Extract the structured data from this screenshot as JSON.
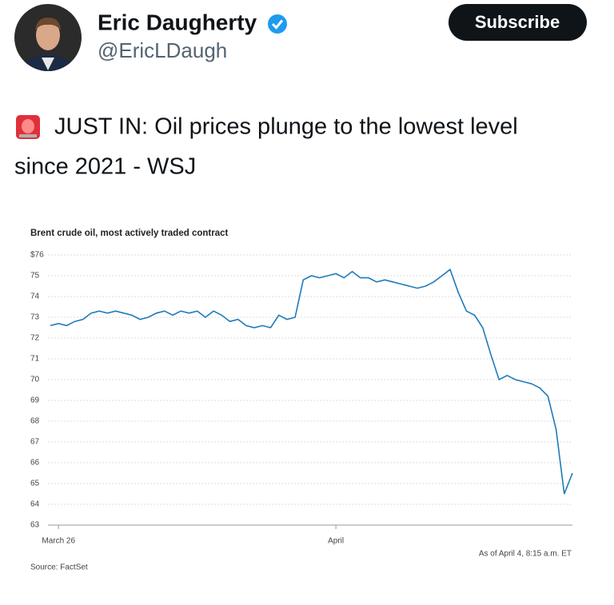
{
  "header": {
    "name": "Eric Daugherty",
    "handle": "@EricLDaugh",
    "button": "Subscribe"
  },
  "tweet": {
    "text_line1": "JUST IN: Oil prices plunge to the lowest level",
    "text_line2": "since 2021 - WSJ"
  },
  "chart_data": {
    "type": "line",
    "title": "Brent crude oil, most actively traded contract",
    "note": "As of April 4, 8:15 a.m. ET",
    "source": "Source: FactSet",
    "color": "#1f7bb8",
    "grid": true,
    "categories": [
      null,
      "March 26",
      null,
      null,
      null,
      null,
      null,
      null,
      null,
      null,
      null,
      null,
      null,
      null,
      null,
      null,
      null,
      null,
      null,
      null,
      null,
      null,
      null,
      null,
      null,
      null,
      null,
      null,
      null,
      null,
      null,
      null,
      null,
      null,
      null,
      "April",
      null,
      null,
      null,
      null,
      null,
      null,
      null,
      null,
      null,
      null,
      null,
      null,
      null,
      null,
      null,
      null,
      null,
      null,
      null,
      null,
      null,
      null,
      null,
      null,
      null,
      null,
      null,
      null,
      null
    ],
    "values": [
      72.6,
      72.7,
      72.6,
      72.8,
      72.9,
      73.2,
      73.3,
      73.2,
      73.3,
      73.2,
      73.1,
      72.9,
      73.0,
      73.2,
      73.3,
      73.1,
      73.3,
      73.2,
      73.3,
      73.0,
      73.3,
      73.1,
      72.8,
      72.9,
      72.6,
      72.5,
      72.6,
      72.5,
      73.1,
      72.9,
      73.0,
      74.8,
      75.0,
      74.9,
      75.0,
      75.1,
      74.9,
      75.2,
      74.9,
      74.9,
      74.7,
      74.8,
      74.7,
      74.6,
      74.5,
      74.4,
      74.5,
      74.7,
      75.0,
      75.3,
      74.2,
      73.3,
      73.1,
      72.5,
      71.2,
      70.0,
      70.2,
      70.0,
      69.9,
      69.8,
      69.6,
      69.2,
      67.6,
      64.5,
      65.5
    ],
    "ylim": [
      63,
      76
    ],
    "yticks": [
      63,
      64,
      65,
      66,
      67,
      68,
      69,
      70,
      71,
      72,
      73,
      74,
      75,
      {
        "value": 76,
        "label": "$76"
      }
    ]
  }
}
